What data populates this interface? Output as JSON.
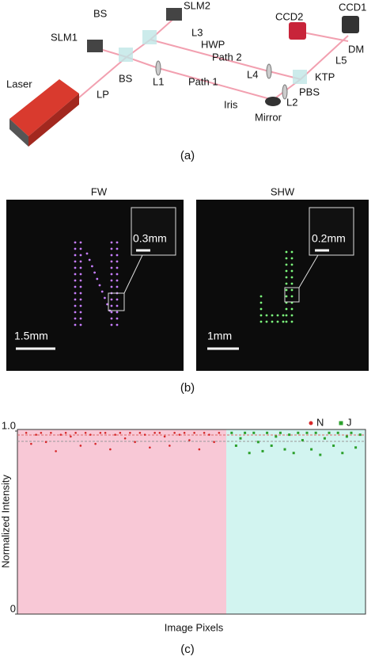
{
  "panel_a": {
    "labels": {
      "laser": "Laser",
      "lp": "LP",
      "bs1": "BS",
      "slm1": "SLM1",
      "bs2": "BS",
      "slm2": "SLM2",
      "l3": "L3",
      "hwp": "HWP",
      "path2": "Path 2",
      "l1": "L1",
      "path1": "Path 1",
      "l4": "L4",
      "iris": "Iris",
      "mirror": "Mirror",
      "l2": "L2",
      "pbs": "PBS",
      "ktp": "KTP",
      "l5": "L5",
      "dm": "DM",
      "ccd2": "CCD2",
      "ccd1": "CCD1"
    },
    "caption": "(a)"
  },
  "panel_b": {
    "left": {
      "title": "FW",
      "scale": "1.5mm",
      "inset_scale": "0.3mm"
    },
    "right": {
      "title": "SHW",
      "scale": "1mm",
      "inset_scale": "0.2mm"
    },
    "caption": "(b)"
  },
  "chart_data": {
    "type": "scatter",
    "xlabel": "Image Pixels",
    "ylabel": "Normalized Intensity",
    "caption": "(c)",
    "ylim": [
      0,
      1.0
    ],
    "yticks": [
      0,
      {
        "value": 1,
        "label": "1.0"
      }
    ],
    "series": [
      {
        "name": "N",
        "color": "#d62728",
        "values": [
          0.99,
          0.93,
          0.98,
          0.99,
          0.94,
          0.99,
          0.89,
          0.98,
          0.99,
          0.97,
          0.99,
          0.92,
          0.99,
          0.98,
          0.93,
          0.99,
          0.99,
          0.9,
          0.98,
          0.99,
          0.96,
          0.99,
          0.94,
          0.99,
          0.98,
          0.91,
          0.99,
          0.99,
          0.97,
          0.92,
          0.99,
          0.98,
          0.99,
          0.95,
          0.99,
          0.9,
          0.99,
          0.98,
          0.94,
          0.99
        ]
      },
      {
        "name": "J",
        "color": "#2ca02c",
        "values": [
          0.99,
          0.92,
          0.96,
          0.99,
          0.88,
          0.99,
          0.94,
          0.89,
          0.99,
          0.92,
          0.97,
          0.99,
          0.9,
          0.98,
          0.88,
          0.99,
          0.95,
          0.99,
          0.9,
          0.99,
          0.87,
          0.96,
          0.99,
          0.92,
          0.99,
          0.88,
          0.97,
          0.99,
          0.91,
          0.98
        ]
      }
    ]
  }
}
